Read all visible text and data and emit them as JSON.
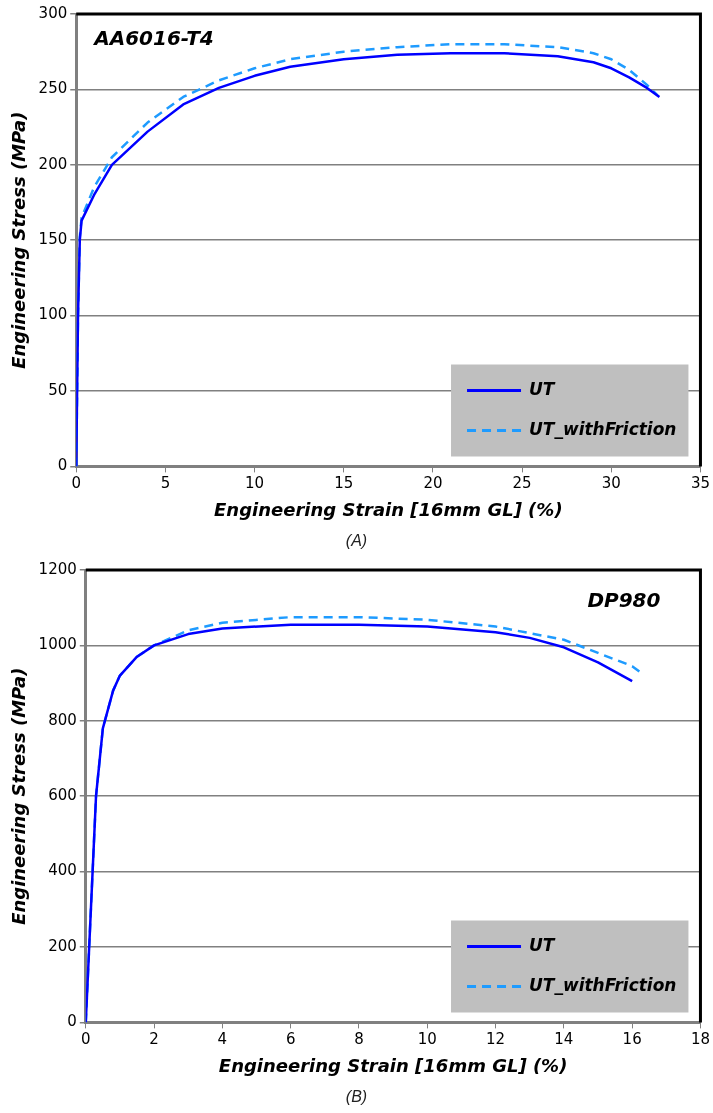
{
  "chart_data": [
    {
      "type": "line",
      "title": "AA6016-T4",
      "xlabel": "Engineering Strain [16mm GL] (%)",
      "ylabel": "Engineering Stress (MPa)",
      "annotations": [
        "(A)"
      ],
      "xlim": [
        0,
        35
      ],
      "xticks": [
        0,
        5,
        10,
        15,
        20,
        25,
        30,
        35
      ],
      "ylim": [
        0,
        300
      ],
      "yticks": [
        0,
        50,
        100,
        150,
        200,
        250,
        300
      ],
      "grid": "y",
      "legend": "bottom right",
      "series": [
        {
          "name": "UT",
          "color": "#0000ff",
          "line_style": "solid",
          "x": [
            0,
            0.1,
            0.2,
            0.3,
            1,
            2,
            4,
            6,
            8,
            10,
            12,
            15,
            18,
            21,
            24,
            27,
            29,
            30,
            31,
            32,
            32.7
          ],
          "values": [
            0,
            100,
            150,
            163,
            180,
            200,
            222,
            240,
            251,
            259,
            265,
            270,
            273,
            274,
            274,
            272,
            268,
            264,
            258,
            251,
            245
          ]
        },
        {
          "name": "UT_withFriction",
          "color": "#1e9bff",
          "line_style": "dashed",
          "x": [
            0,
            0.1,
            0.2,
            0.3,
            1,
            2,
            4,
            6,
            8,
            10,
            12,
            15,
            18,
            21,
            24,
            27,
            29,
            30,
            31,
            32,
            32.6
          ],
          "values": [
            0,
            100,
            152,
            165,
            185,
            205,
            228,
            245,
            256,
            264,
            270,
            275,
            278,
            280,
            280,
            278,
            274,
            270,
            263,
            253,
            246
          ]
        }
      ]
    },
    {
      "type": "line",
      "title": "DP980",
      "xlabel": "Engineering Strain [16mm GL] (%)",
      "ylabel": "Engineering Stress (MPa)",
      "annotations": [
        "(B)"
      ],
      "xlim": [
        0,
        18
      ],
      "xticks": [
        0,
        2,
        4,
        6,
        8,
        10,
        12,
        14,
        16,
        18
      ],
      "ylim": [
        0,
        1200
      ],
      "yticks": [
        0,
        200,
        400,
        600,
        800,
        1000,
        1200
      ],
      "grid": "y",
      "legend": "bottom right",
      "series": [
        {
          "name": "UT",
          "color": "#0000ff",
          "line_style": "solid",
          "x": [
            0,
            0.1,
            0.2,
            0.3,
            0.5,
            0.8,
            1,
            1.5,
            2,
            3,
            4,
            6,
            8,
            10,
            12,
            13,
            14,
            15,
            16
          ],
          "values": [
            0,
            200,
            400,
            600,
            780,
            880,
            920,
            970,
            1000,
            1030,
            1045,
            1055,
            1055,
            1050,
            1035,
            1020,
            995,
            955,
            905
          ]
        },
        {
          "name": "UT_withFriction",
          "color": "#1e9bff",
          "line_style": "dashed",
          "x": [
            0,
            0.1,
            0.2,
            0.3,
            0.5,
            0.8,
            1,
            1.5,
            2,
            3,
            4,
            6,
            8,
            10,
            12,
            14,
            15,
            16,
            16.3
          ],
          "values": [
            0,
            200,
            400,
            600,
            780,
            880,
            920,
            970,
            1000,
            1040,
            1060,
            1075,
            1075,
            1068,
            1050,
            1015,
            980,
            945,
            925
          ]
        }
      ]
    }
  ]
}
